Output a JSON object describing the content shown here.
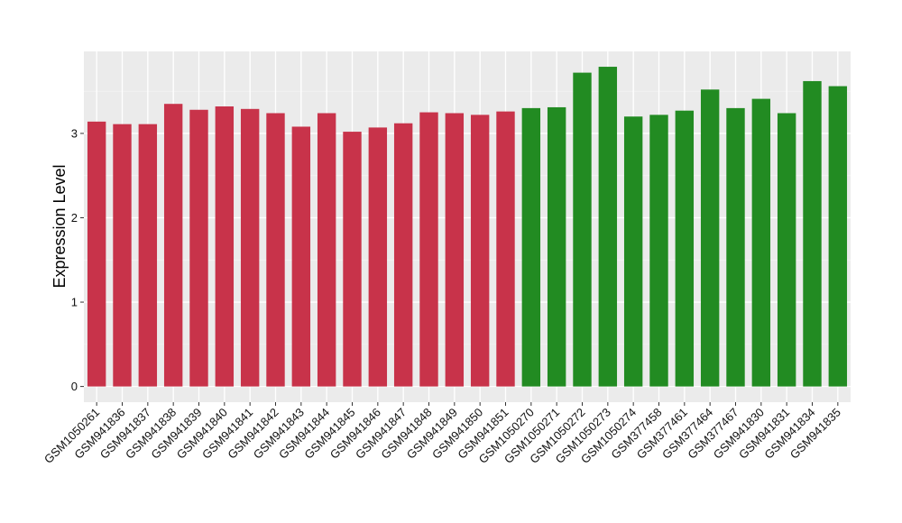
{
  "chart_data": {
    "type": "bar",
    "ylabel": "Expression Level",
    "xlabel": "",
    "title": "",
    "ylim": [
      0,
      3.9
    ],
    "yticks": [
      0,
      1,
      2,
      3
    ],
    "grid": true,
    "legend": "none",
    "background": "#ebebeb",
    "colors": {
      "group1": "#c8334a",
      "group2": "#228b22"
    },
    "categories": [
      "GSM1050261",
      "GSM941836",
      "GSM941837",
      "GSM941838",
      "GSM941839",
      "GSM941840",
      "GSM941841",
      "GSM941842",
      "GSM941843",
      "GSM941844",
      "GSM941845",
      "GSM941846",
      "GSM941847",
      "GSM941848",
      "GSM941849",
      "GSM941850",
      "GSM941851",
      "GSM1050270",
      "GSM1050271",
      "GSM1050272",
      "GSM1050273",
      "GSM1050274",
      "GSM377458",
      "GSM377461",
      "GSM377464",
      "GSM377467",
      "GSM941830",
      "GSM941831",
      "GSM941834",
      "GSM941835"
    ],
    "values": [
      3.14,
      3.11,
      3.11,
      3.35,
      3.28,
      3.32,
      3.29,
      3.24,
      3.08,
      3.24,
      3.02,
      3.07,
      3.12,
      3.25,
      3.24,
      3.22,
      3.26,
      3.3,
      3.31,
      3.72,
      3.79,
      3.2,
      3.22,
      3.27,
      3.52,
      3.3,
      3.41,
      3.24,
      3.62,
      3.56
    ],
    "groups": [
      "group1",
      "group1",
      "group1",
      "group1",
      "group1",
      "group1",
      "group1",
      "group1",
      "group1",
      "group1",
      "group1",
      "group1",
      "group1",
      "group1",
      "group1",
      "group1",
      "group1",
      "group2",
      "group2",
      "group2",
      "group2",
      "group2",
      "group2",
      "group2",
      "group2",
      "group2",
      "group2",
      "group2",
      "group2",
      "group2"
    ]
  }
}
